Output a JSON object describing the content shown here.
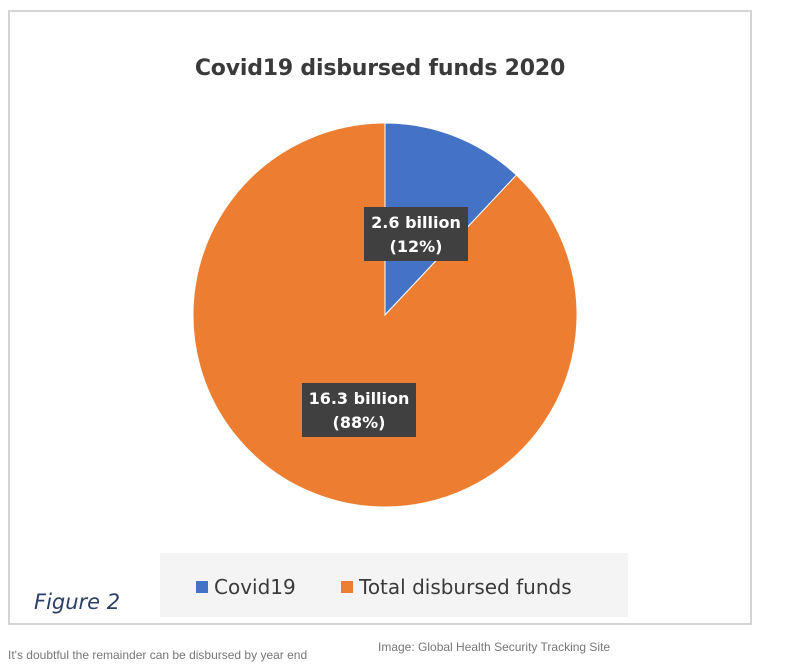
{
  "chart_data": {
    "type": "pie",
    "title": "Covid19 disbursed funds 2020",
    "slices": [
      {
        "name": "Covid19",
        "value": 12,
        "label_line1": "2.6 billion",
        "label_line2": "(12%)",
        "color": "#4472c4"
      },
      {
        "name": "Total disbursed funds",
        "value": 88,
        "label_line1": "16.3 billion",
        "label_line2": "(88%)",
        "color": "#ed7d31"
      }
    ],
    "legend_position": "bottom"
  },
  "figure_label": "Figure 2",
  "caption_left": "It's doubtful the remainder can be disbursed by year end",
  "caption_right": "Image: Global Health Security Tracking Site",
  "colors": {
    "frame_border": "#d4d4d4",
    "label_box": "#404040",
    "legend_band": "#f4f4f4"
  }
}
